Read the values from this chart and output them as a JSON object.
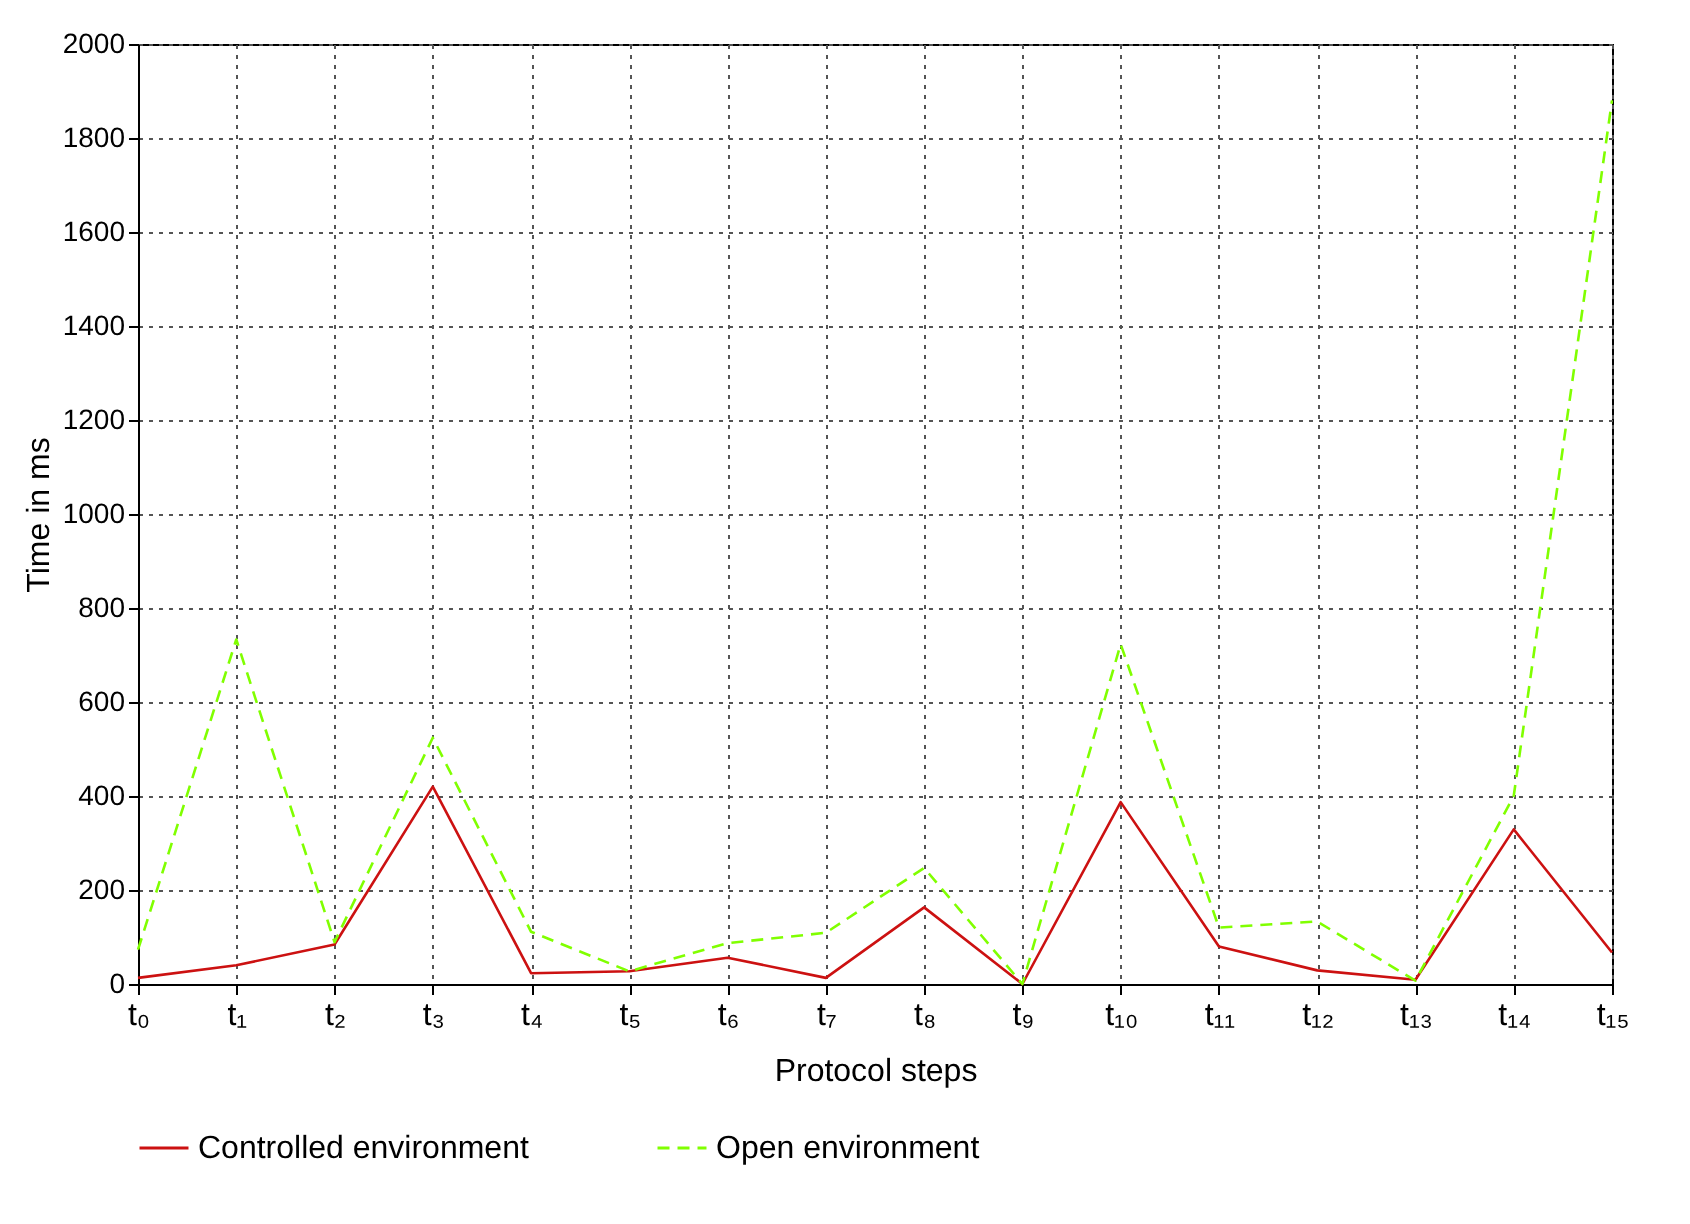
{
  "chart_data": {
    "type": "line",
    "xlabel": "Protocol steps",
    "ylabel": "Time in ms",
    "categories": [
      "t₀",
      "t₁",
      "t₂",
      "t₃",
      "t₄",
      "t₅",
      "t₆",
      "t₇",
      "t₈",
      "t₉",
      "t₁₀",
      "t₁₁",
      "t₁₂",
      "t₁₃",
      "t₁₄",
      "t₁₅"
    ],
    "series": [
      {
        "name": "Controlled environment",
        "color": "#cc1111",
        "line_style": "solid",
        "values": [
          13,
          40,
          84,
          420,
          23,
          27,
          56,
          13,
          163,
          0,
          387,
          80,
          29,
          9,
          329,
          67
        ]
      },
      {
        "name": "Open environment",
        "color": "#80ff00",
        "line_style": "dashed",
        "values": [
          73,
          733,
          89,
          524,
          111,
          27,
          87,
          109,
          247,
          0,
          723,
          120,
          133,
          7,
          400,
          1880
        ]
      }
    ],
    "ylim": [
      0,
      2000
    ],
    "yticks": [
      0,
      200,
      400,
      600,
      800,
      1000,
      1200,
      1400,
      1600,
      1800,
      2000
    ],
    "grid": true,
    "legend": "bottom",
    "marker": "none"
  }
}
